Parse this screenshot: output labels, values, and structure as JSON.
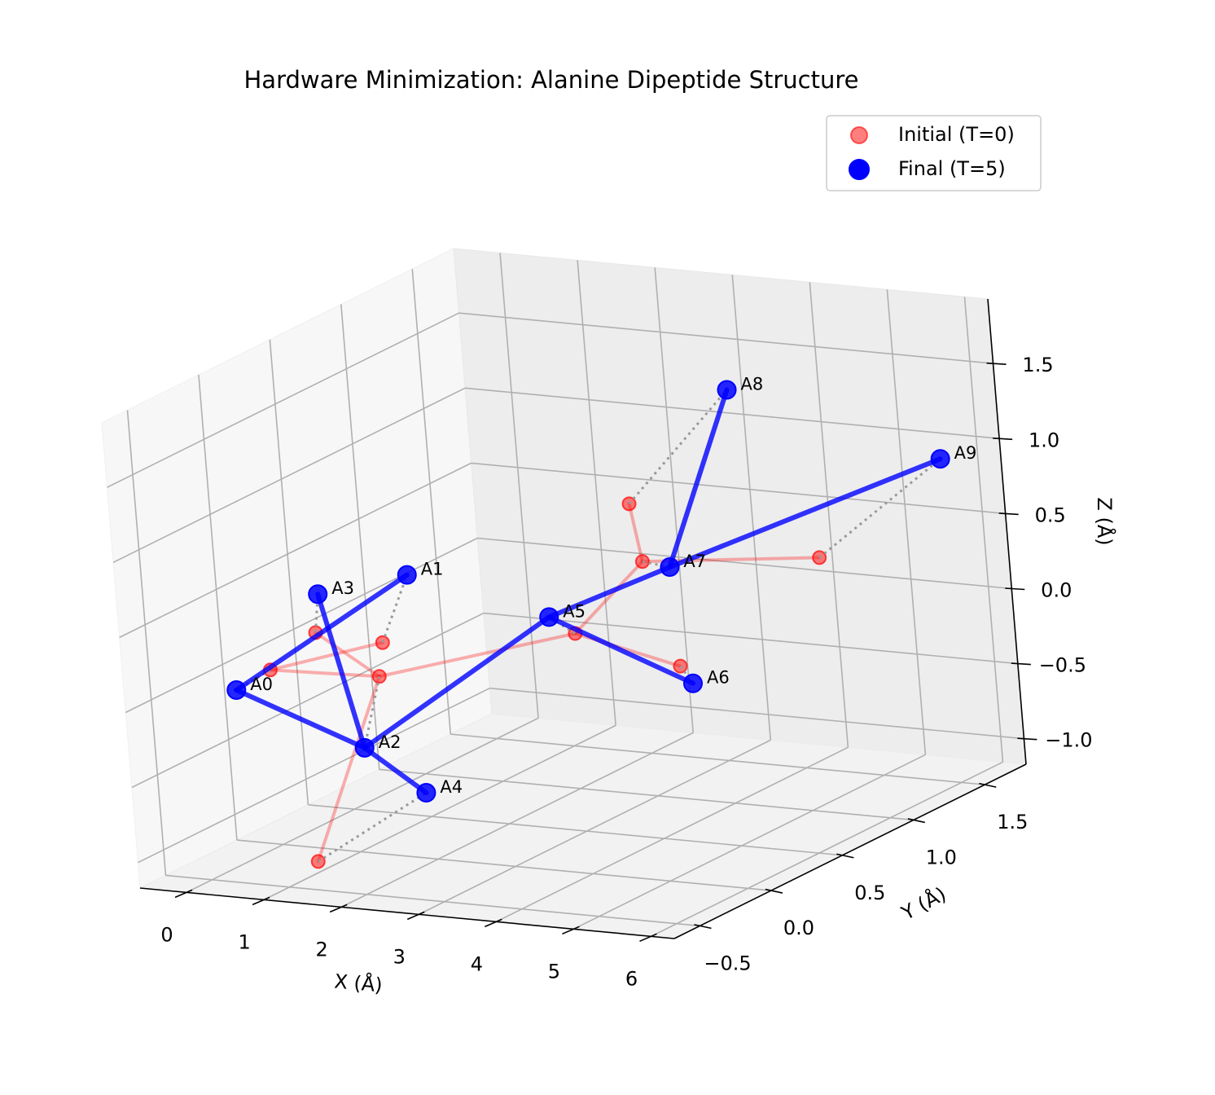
{
  "chart_data": {
    "type": "scatter3d",
    "title": "Hardware Minimization: Alanine Dipeptide Structure",
    "xlabel": "X (Å)",
    "ylabel": "Y (Å)",
    "zlabel": "Z (Å)",
    "xlim": [
      -0.6,
      6.3
    ],
    "ylim": [
      -0.68,
      1.79
    ],
    "zlim": [
      -1.17,
      1.93
    ],
    "xticks": [
      0,
      1,
      2,
      3,
      4,
      5,
      6
    ],
    "yticks": [
      {
        "value": -0.5,
        "label": "−0.5"
      },
      {
        "value": 0,
        "label": "0.0"
      },
      0.5,
      {
        "value": 1,
        "label": "1.0"
      },
      1.5
    ],
    "zticks": [
      {
        "value": -1,
        "label": "−1.0"
      },
      {
        "value": -0.5,
        "label": "−0.5"
      },
      {
        "value": 0,
        "label": "0.0"
      },
      0.5,
      {
        "value": 1,
        "label": "1.0"
      },
      1.5
    ],
    "grid": true,
    "legend": "upper right",
    "labels": [
      "A0",
      "A1",
      "A2",
      "A3",
      "A4",
      "A5",
      "A6",
      "A7",
      "A8",
      "A9"
    ],
    "bonds": [
      [
        0,
        1
      ],
      [
        0,
        2
      ],
      [
        2,
        3
      ],
      [
        2,
        4
      ],
      [
        2,
        5
      ],
      [
        5,
        6
      ],
      [
        5,
        7
      ],
      [
        7,
        8
      ],
      [
        7,
        9
      ]
    ],
    "series": [
      {
        "name": "Initial (T=0)",
        "color": "red",
        "x": [
          0.21,
          0.35,
          0.85,
          0.26,
          1.4,
          3.06,
          4.78,
          3.24,
          2.55,
          4.39
        ],
        "y": [
          -0.1,
          0.6,
          0.3,
          0.2,
          -0.5,
          0.5,
          0.3,
          0.9,
          1.2,
          1.5
        ],
        "z": [
          0.05,
          -0.09,
          -0.15,
          0.16,
          -0.98,
          0.15,
          0.11,
          0.45,
          0.66,
          0.25
        ]
      },
      {
        "name": "Final (T=5)",
        "color": "blue",
        "x": [
          -0.06,
          0.74,
          1.74,
          0.33,
          2.88,
          2.93,
          4.54,
          3.59,
          4.33,
          6.07
        ],
        "y": [
          -0.2,
          0.6,
          -0.3,
          0.2,
          -0.5,
          0.4,
          0.5,
          0.9,
          1.0,
          1.5
        ],
        "z": [
          -0.05,
          0.38,
          -0.3,
          0.42,
          -0.45,
          0.3,
          -0.11,
          0.43,
          1.6,
          0.99
        ]
      }
    ]
  }
}
